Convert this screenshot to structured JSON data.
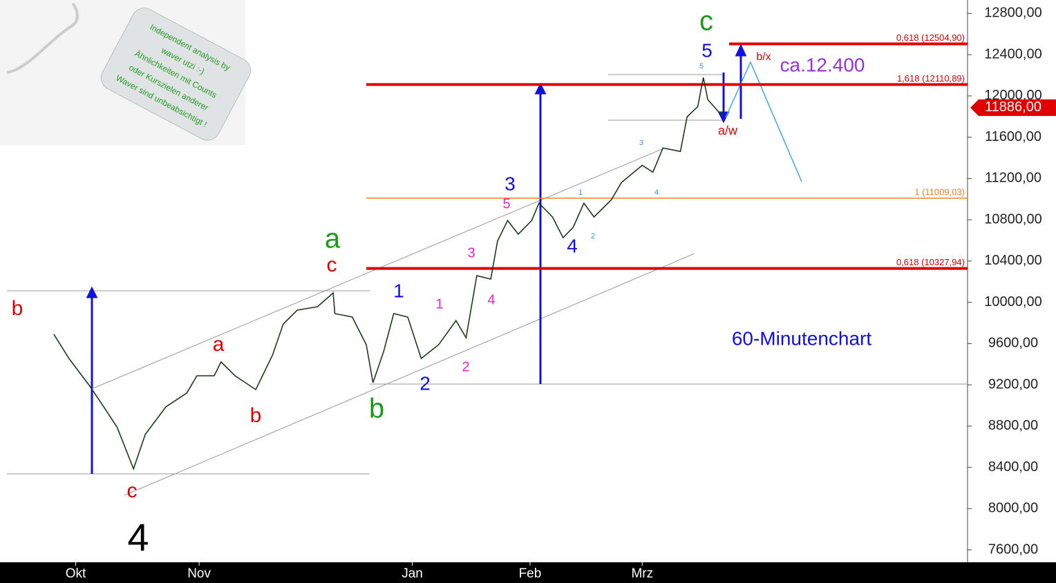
{
  "chart_data": {
    "type": "line",
    "color": "#1a3a1a",
    "x": [
      8.1,
      10.8,
      14.5,
      17,
      19.4,
      22.3,
      24.4,
      28.1,
      31.8,
      33.6,
      36.7,
      37.9,
      40.4,
      44.1,
      47.1,
      49,
      51.5,
      55.1,
      57.9,
      58.2,
      61.3,
      63.8,
      65,
      66.9,
      68.7,
      71.2,
      73.6,
      76.7,
      79.8,
      81.6,
      83.5,
      86,
      87.2,
      89,
      90.9,
      93.3,
      94.6,
      97,
      98.9,
      100.7,
      102.6,
      104.4,
      107.5,
      109.3,
      113,
      114.9,
      116.7,
      119.8,
      121,
      122.9,
      123.9,
      124.7,
      127.2,
      127.6
    ],
    "values": [
      9690,
      9455,
      9188,
      8987,
      8787,
      8385,
      8720,
      8987,
      9121,
      9288,
      9288,
      9422,
      9288,
      9154,
      9489,
      9790,
      9924,
      9957,
      10091,
      9890,
      9857,
      9589,
      9221,
      9522,
      9890,
      9857,
      9455,
      9589,
      9823,
      9656,
      10258,
      10225,
      10593,
      10793,
      10660,
      10793,
      10961,
      10827,
      10626,
      10727,
      10961,
      10827,
      10994,
      11161,
      11328,
      11261,
      11496,
      11462,
      11797,
      11897,
      12178,
      11964,
      11810,
      11886
    ],
    "xlim": [
      -1.5,
      171
    ],
    "xticks": [
      {
        "value": 12,
        "label": "Okt"
      },
      {
        "value": 34,
        "label": "Nov"
      },
      {
        "value": 72,
        "label": "Jan"
      },
      {
        "value": 93,
        "label": "Feb"
      },
      {
        "value": 113,
        "label": "Mrz"
      }
    ],
    "ylim": [
      7480,
      12930
    ],
    "yticks": [
      {
        "value": 7600,
        "label": "7600,00"
      },
      {
        "value": 8000,
        "label": "8000,00"
      },
      {
        "value": 8400,
        "label": "8400,00"
      },
      {
        "value": 8800,
        "label": "8800,00"
      },
      {
        "value": 9200,
        "label": "9200,00"
      },
      {
        "value": 9600,
        "label": "9600,00"
      },
      {
        "value": 10000,
        "label": "10000,00"
      },
      {
        "value": 10400,
        "label": "10400,00"
      },
      {
        "value": 10800,
        "label": "10800,00"
      },
      {
        "value": 11200,
        "label": "11200,00"
      },
      {
        "value": 11600,
        "label": "11600,00"
      },
      {
        "value": 12000,
        "label": "12000,00"
      },
      {
        "value": 12400,
        "label": "12400,00"
      },
      {
        "value": 12800,
        "label": "12800,00"
      }
    ],
    "current_price": {
      "value": 11886,
      "label": "11886,00"
    },
    "levels": [
      {
        "value": 12504.9,
        "label": "0,618 (12504,90)",
        "color": "#e00000"
      },
      {
        "value": 12110.89,
        "label": "1,618 (12110,89)",
        "color": "#e00000"
      },
      {
        "value": 11009.03,
        "label": "1 (11009,03)",
        "color": "#f07f20"
      },
      {
        "value": 10327.94,
        "label": "0,618 (10327,94)",
        "color": "#e00000"
      }
    ],
    "annotations": [
      {
        "text": "b",
        "color": "#e00000"
      },
      {
        "text": "a",
        "color": "#e00000"
      },
      {
        "text": "b",
        "color": "#e00000"
      },
      {
        "text": "c",
        "color": "#e00000"
      },
      {
        "text": "4",
        "color": "#000000"
      },
      {
        "text": "c",
        "color": "#e00000"
      },
      {
        "text": "a",
        "color": "#1a9a1a"
      },
      {
        "text": "b",
        "color": "#1a9a1a"
      },
      {
        "text": "1",
        "color": "#1010e0"
      },
      {
        "text": "2",
        "color": "#1010e0"
      },
      {
        "text": "3",
        "color": "#1010e0"
      },
      {
        "text": "4",
        "color": "#1010e0"
      },
      {
        "text": "5",
        "color": "#1010e0"
      },
      {
        "text": "c",
        "color": "#1a9a1a"
      },
      {
        "text": "1",
        "color": "#f020d0"
      },
      {
        "text": "2",
        "color": "#f020d0"
      },
      {
        "text": "3",
        "color": "#f020d0"
      },
      {
        "text": "4",
        "color": "#f020d0"
      },
      {
        "text": "5",
        "color": "#f020d0"
      },
      {
        "text": "1",
        "color": "#2a9ae0"
      },
      {
        "text": "2",
        "color": "#2a9ae0"
      },
      {
        "text": "3",
        "color": "#2a9ae0"
      },
      {
        "text": "4",
        "color": "#2a9ae0"
      },
      {
        "text": "5",
        "color": "#2a9ae0"
      },
      {
        "text": "a/w",
        "color": "#e00000"
      },
      {
        "text": "b/x",
        "color": "#e00000"
      },
      {
        "text": "ca.12.400",
        "color": "#9a30e0"
      },
      {
        "text": "60-Minutenchart",
        "color": "#1010e0"
      }
    ]
  },
  "tag": {
    "lines": [
      "Independent analysis by",
      "waver utzi :-)",
      "Ähnlichkeiten mit Counts",
      "oder Kurszielen anderer",
      "Waver sind unbeabsichtigt !"
    ]
  }
}
